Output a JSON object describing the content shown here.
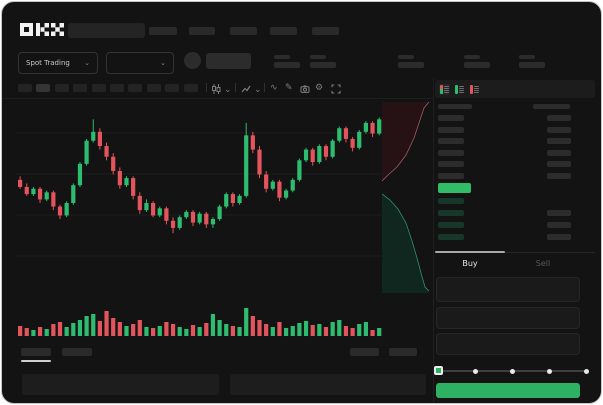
{
  "window": {
    "app_name": "OKX trading terminal",
    "logo_text": "OKX"
  },
  "header": {
    "nav_item_count": 5
  },
  "subheader": {
    "market_selector_label": "Spot Trading",
    "pair_selector_value": "",
    "stat_group_count": 5
  },
  "chart_toolbar": {
    "timeframe_count": 10,
    "active_timeframe_index": 1,
    "tool_icons": [
      "candle-style",
      "chart-type",
      "indicator-wave",
      "draw",
      "screenshot",
      "settings",
      "fullscreen"
    ]
  },
  "chart_data": {
    "type": "candlestick",
    "title": "",
    "xlabel": "",
    "ylabel": "",
    "value_range": [
      30,
      100
    ],
    "gridline_count": 4,
    "legend": "none",
    "candles_ohlc": [
      [
        63,
        65,
        58,
        59
      ],
      [
        59,
        61,
        54,
        55
      ],
      [
        55,
        59,
        54,
        58
      ],
      [
        58,
        59,
        50,
        52
      ],
      [
        52,
        57,
        51,
        56
      ],
      [
        56,
        57,
        46,
        48
      ],
      [
        48,
        49,
        41,
        43
      ],
      [
        43,
        51,
        42,
        50
      ],
      [
        50,
        61,
        49,
        60
      ],
      [
        60,
        73,
        59,
        72
      ],
      [
        72,
        86,
        71,
        85
      ],
      [
        85,
        97,
        84,
        90
      ],
      [
        90,
        92,
        80,
        82
      ],
      [
        82,
        84,
        74,
        76
      ],
      [
        76,
        78,
        66,
        68
      ],
      [
        68,
        70,
        58,
        60
      ],
      [
        60,
        65,
        59,
        64
      ],
      [
        64,
        65,
        52,
        54
      ],
      [
        54,
        56,
        44,
        46
      ],
      [
        46,
        52,
        45,
        50
      ],
      [
        50,
        51,
        42,
        43
      ],
      [
        43,
        48,
        42,
        47
      ],
      [
        47,
        48,
        38,
        40
      ],
      [
        40,
        42,
        33,
        36
      ],
      [
        36,
        43,
        35,
        42
      ],
      [
        42,
        46,
        41,
        45
      ],
      [
        45,
        46,
        37,
        39
      ],
      [
        39,
        45,
        38,
        44
      ],
      [
        44,
        45,
        36,
        38
      ],
      [
        38,
        42,
        36,
        41
      ],
      [
        41,
        49,
        40,
        48
      ],
      [
        48,
        56,
        47,
        55
      ],
      [
        55,
        56,
        48,
        50
      ],
      [
        50,
        55,
        49,
        54
      ],
      [
        54,
        95,
        53,
        88
      ],
      [
        88,
        90,
        78,
        80
      ],
      [
        80,
        82,
        64,
        66
      ],
      [
        66,
        68,
        56,
        58
      ],
      [
        58,
        63,
        57,
        62
      ],
      [
        62,
        63,
        51,
        53
      ],
      [
        53,
        58,
        52,
        57
      ],
      [
        57,
        64,
        56,
        63
      ],
      [
        63,
        75,
        62,
        74
      ],
      [
        74,
        81,
        73,
        80
      ],
      [
        80,
        81,
        71,
        73
      ],
      [
        73,
        83,
        72,
        82
      ],
      [
        82,
        83,
        74,
        76
      ],
      [
        76,
        86,
        75,
        85
      ],
      [
        85,
        93,
        84,
        92
      ],
      [
        92,
        93,
        84,
        86
      ],
      [
        86,
        87,
        79,
        81
      ],
      [
        81,
        91,
        80,
        90
      ],
      [
        90,
        96,
        89,
        95
      ],
      [
        95,
        96,
        87,
        89
      ],
      [
        89,
        98,
        88,
        97
      ]
    ],
    "volumes": [
      10,
      8,
      6,
      9,
      7,
      12,
      14,
      9,
      13,
      16,
      20,
      22,
      15,
      25,
      18,
      14,
      10,
      12,
      16,
      9,
      8,
      10,
      14,
      12,
      9,
      7,
      11,
      9,
      13,
      22,
      16,
      12,
      10,
      9,
      28,
      20,
      16,
      12,
      9,
      14,
      8,
      10,
      13,
      15,
      11,
      12,
      9,
      14,
      16,
      10,
      8,
      12,
      14,
      6,
      8
    ]
  },
  "depth_chart": {
    "type": "area",
    "orientation": "vertical",
    "ask_line": [
      [
        47,
        3
      ],
      [
        42,
        9
      ],
      [
        37,
        24
      ],
      [
        32,
        39
      ],
      [
        24,
        56
      ],
      [
        15,
        68
      ],
      [
        6,
        76
      ],
      [
        0,
        82
      ]
    ],
    "bid_line": [
      [
        0,
        95
      ],
      [
        8,
        101
      ],
      [
        16,
        110
      ],
      [
        24,
        124
      ],
      [
        30,
        142
      ],
      [
        35,
        159
      ],
      [
        39,
        174
      ],
      [
        43,
        188
      ],
      [
        47,
        192
      ]
    ]
  },
  "orderbook": {
    "layout_toggles": [
      "book-both",
      "book-bids",
      "book-asks"
    ],
    "ask_row_count": 6,
    "bid_row_count": 4,
    "bid_rows_with_amount": [
      1,
      2,
      3
    ]
  },
  "trade_panel": {
    "tabs": [
      {
        "label": "Buy",
        "active": true
      },
      {
        "label": "Sell",
        "active": false
      }
    ],
    "input_count": 3,
    "slider_stop_count": 5,
    "submit_label": ""
  },
  "bottom_panel": {
    "left_tab_count": 2,
    "active_left_tab_index": 0,
    "right_tab_count": 2,
    "panel_count": 2
  },
  "colors": {
    "up": "#2ebd70",
    "down": "#e2555c",
    "price_highlight": "#31bd68",
    "button_green": "#2fb164",
    "depth_ask_fill": "#261114",
    "depth_ask_line": "#a05a62",
    "depth_bid_fill": "#0f271e",
    "depth_bid_line": "#2f8f72"
  }
}
